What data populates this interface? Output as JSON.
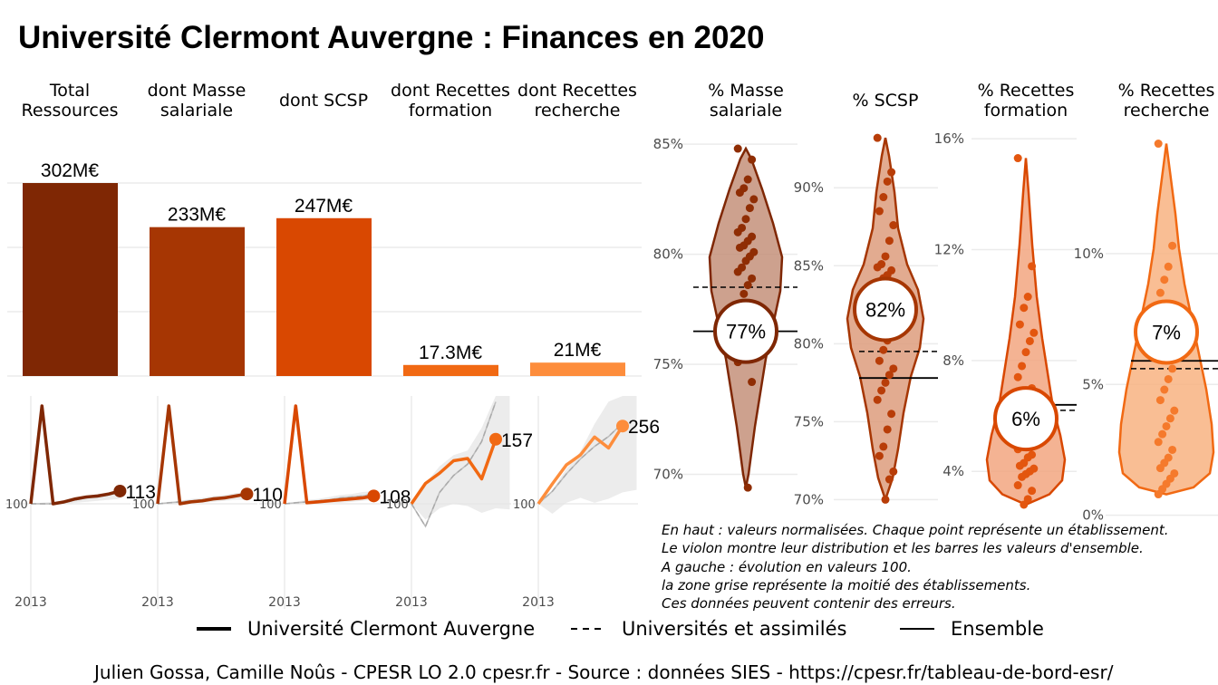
{
  "title": "Université Clermont Auvergne  :  Finances en 2020",
  "chart_data": [
    {
      "type": "bar",
      "categories": [
        "Total\nRessources",
        "dont Masse\nsalariale",
        "dont SCSP",
        "dont Recettes\nformation",
        "dont Recettes\nrecherche"
      ],
      "values": [
        302,
        233,
        247,
        17.3,
        21
      ],
      "value_labels": [
        "302M€",
        "233M€",
        "247M€",
        "17.3M€",
        "21M€"
      ],
      "units": "M€",
      "ylim": [
        0,
        302
      ],
      "colors": [
        "#7f2704",
        "#a63603",
        "#d94801",
        "#f16913",
        "#fd8d3c"
      ],
      "grid": true
    },
    {
      "type": "line",
      "panels": [
        {
          "name": "Total Ressources",
          "end_label": "113",
          "start_label": "100",
          "xlabel": "2013",
          "points": [
            [
              0,
              100
            ],
            [
              1,
              200
            ],
            [
              2,
              100
            ],
            [
              3,
              102
            ],
            [
              4,
              105
            ],
            [
              5,
              107
            ],
            [
              6,
              108
            ],
            [
              7,
              110
            ],
            [
              8,
              113
            ]
          ],
          "dashed": [
            [
              0,
              100
            ],
            [
              1,
              100
            ],
            [
              2,
              100
            ],
            [
              3,
              101
            ],
            [
              4,
              104
            ],
            [
              5,
              106
            ],
            [
              6,
              107
            ],
            [
              7,
              109
            ],
            [
              8,
              112
            ]
          ],
          "band": [
            [
              0,
              100,
              100
            ],
            [
              1,
              99,
              101
            ],
            [
              2,
              99,
              102
            ],
            [
              3,
              100,
              103
            ],
            [
              4,
              101,
              106
            ],
            [
              5,
              102,
              108
            ],
            [
              6,
              103,
              110
            ],
            [
              7,
              104,
              112
            ],
            [
              8,
              105,
              114
            ]
          ]
        },
        {
          "name": "dont Masse salariale",
          "end_label": "110",
          "start_label": "100",
          "xlabel": "2013",
          "points": [
            [
              0,
              100
            ],
            [
              1,
              200
            ],
            [
              2,
              100
            ],
            [
              3,
              102
            ],
            [
              4,
              103
            ],
            [
              5,
              105
            ],
            [
              6,
              106
            ],
            [
              7,
              108
            ],
            [
              8,
              110
            ]
          ],
          "dashed": [
            [
              0,
              100
            ],
            [
              1,
              101
            ],
            [
              2,
              102
            ],
            [
              3,
              103
            ],
            [
              4,
              104
            ],
            [
              5,
              106
            ],
            [
              6,
              107
            ],
            [
              7,
              108
            ],
            [
              8,
              109
            ]
          ],
          "band": [
            [
              0,
              100,
              100
            ],
            [
              1,
              100,
              102
            ],
            [
              2,
              100,
              103
            ],
            [
              3,
              101,
              105
            ],
            [
              4,
              101,
              106
            ],
            [
              5,
              102,
              108
            ],
            [
              6,
              103,
              109
            ],
            [
              7,
              104,
              111
            ],
            [
              8,
              104,
              112
            ]
          ]
        },
        {
          "name": "dont SCSP",
          "end_label": "108",
          "start_label": "100",
          "xlabel": "2013",
          "points": [
            [
              0,
              100
            ],
            [
              1,
              200
            ],
            [
              2,
              101
            ],
            [
              3,
              102
            ],
            [
              4,
              103
            ],
            [
              5,
              104
            ],
            [
              6,
              105
            ],
            [
              7,
              106
            ],
            [
              8,
              108
            ]
          ],
          "dashed": [
            [
              0,
              100
            ],
            [
              1,
              101
            ],
            [
              2,
              102
            ],
            [
              3,
              103
            ],
            [
              4,
              104
            ],
            [
              5,
              106
            ],
            [
              6,
              107
            ],
            [
              7,
              108
            ],
            [
              8,
              110
            ]
          ],
          "band": [
            [
              0,
              100,
              100
            ],
            [
              1,
              100,
              102
            ],
            [
              2,
              100,
              104
            ],
            [
              3,
              100,
              105
            ],
            [
              4,
              101,
              107
            ],
            [
              5,
              101,
              109
            ],
            [
              6,
              102,
              110
            ],
            [
              7,
              103,
              112
            ],
            [
              8,
              104,
              113
            ]
          ]
        },
        {
          "name": "dont Recettes formation",
          "end_label": "157",
          "start_label": "100",
          "xlabel": "2013",
          "points": [
            [
              0,
              100
            ],
            [
              1,
              118
            ],
            [
              2,
              127
            ],
            [
              3,
              138
            ],
            [
              4,
              140
            ],
            [
              5,
              122
            ],
            [
              6,
              157
            ]
          ],
          "dashed": [
            [
              0,
              100
            ],
            [
              1,
              80
            ],
            [
              2,
              110
            ],
            [
              3,
              125
            ],
            [
              4,
              135
            ],
            [
              5,
              155
            ],
            [
              6,
              190
            ]
          ],
          "band": [
            [
              0,
              100,
              100
            ],
            [
              1,
              86,
              118
            ],
            [
              2,
              96,
              133
            ],
            [
              3,
              100,
              143
            ],
            [
              4,
              98,
              147
            ],
            [
              5,
              92,
              167
            ],
            [
              6,
              96,
              198
            ],
            [
              7,
              95,
              203
            ]
          ]
        },
        {
          "name": "dont Recettes recherche",
          "end_label": "256",
          "start_label": "100",
          "xlabel": "2013",
          "points": [
            [
              0,
              100
            ],
            [
              1,
              140
            ],
            [
              2,
              178
            ],
            [
              3,
              198
            ],
            [
              4,
              234
            ],
            [
              5,
              212
            ],
            [
              6,
              256
            ]
          ],
          "dashed": [
            [
              0,
              100
            ],
            [
              1,
              125
            ],
            [
              2,
              160
            ],
            [
              3,
              190
            ],
            [
              4,
              215
            ],
            [
              5,
              235
            ],
            [
              6,
              262
            ]
          ],
          "band": [
            [
              0,
              100,
              100
            ],
            [
              1,
              80,
              128
            ],
            [
              2,
              102,
              170
            ],
            [
              3,
              112,
              205
            ],
            [
              4,
              102,
              260
            ],
            [
              5,
              110,
              305
            ],
            [
              6,
              123,
              360
            ],
            [
              7,
              128,
              420
            ]
          ]
        }
      ]
    },
    {
      "type": "violin",
      "panels": [
        {
          "name": "% Masse\nsalariale",
          "value_label": "77%",
          "value": 76.5,
          "ensemble": 76.5,
          "universites": 78.5,
          "ylim": [
            68.5,
            85.5
          ],
          "ticks": [
            85,
            80,
            75,
            70
          ],
          "tick_labels": [
            "85%",
            "80%",
            "75%",
            "70%"
          ],
          "fill": "#c4917a",
          "stroke": "#7f2704",
          "dot": "#8f2d04",
          "points": [
            84.8,
            84.3,
            83.4,
            83.0,
            82.8,
            82.5,
            82.1,
            81.6,
            81.2,
            81.0,
            80.8,
            80.6,
            80.4,
            80.3,
            80.1,
            79.9,
            79.7,
            79.4,
            79.2,
            78.9,
            78.6,
            78.2,
            77.5,
            77.1,
            76.6,
            76.1,
            75.6,
            75.1,
            74.2,
            69.4
          ]
        },
        {
          "name": "% SCSP",
          "value_label": "82%",
          "value": 82.2,
          "ensemble": 77.8,
          "universites": 79.5,
          "ylim": [
            69.5,
            93.5
          ],
          "ticks": [
            90,
            85,
            80,
            75,
            70
          ],
          "tick_labels": [
            "90%",
            "85%",
            "80%",
            "75%",
            "70%"
          ],
          "fill": "#dd9c7d",
          "stroke": "#a63603",
          "dot": "#b83d08",
          "points": [
            93.2,
            91.0,
            90.4,
            89.4,
            88.5,
            87.6,
            86.6,
            85.6,
            85.1,
            84.9,
            84.7,
            84.4,
            84.2,
            83.7,
            83.1,
            82.7,
            82.3,
            81.7,
            81.2,
            80.8,
            80.2,
            79.6,
            78.9,
            78.4,
            78.0,
            77.5,
            77.0,
            76.4,
            75.5,
            74.5,
            73.4,
            72.8,
            71.8,
            71.3,
            70.0
          ]
        },
        {
          "name": "% Recettes\nformation",
          "value_label": "6%",
          "value": 5.9,
          "ensemble": 6.4,
          "universites": 6.2,
          "ylim": [
            2.7,
            16.2
          ],
          "ticks": [
            16,
            12,
            8,
            4
          ],
          "tick_labels": [
            "16%",
            "12%",
            "8%",
            "4%"
          ],
          "fill": "#f2a680",
          "stroke": "#d94801",
          "dot": "#e3560f",
          "points": [
            15.3,
            11.4,
            10.3,
            9.9,
            9.3,
            9.0,
            8.7,
            8.3,
            7.8,
            7.4,
            7.0,
            6.7,
            6.3,
            6.0,
            5.7,
            5.4,
            5.2,
            5.0,
            4.8,
            4.6,
            4.5,
            4.3,
            4.2,
            4.1,
            4.0,
            3.9,
            3.8,
            3.5,
            3.3,
            3.0,
            2.8
          ]
        },
        {
          "name": "% Recettes\nrecherche",
          "value_label": "7%",
          "value": 7.0,
          "ensemble": 5.9,
          "universites": 5.6,
          "ylim": [
            0.3,
            14.6
          ],
          "ticks": [
            10,
            5,
            0
          ],
          "tick_labels": [
            "10%",
            "5%",
            "0%"
          ],
          "fill": "#f8b381",
          "stroke": "#f16913",
          "dot": "#f57a2c",
          "points": [
            14.2,
            10.3,
            9.5,
            9.0,
            8.5,
            7.8,
            7.4,
            6.9,
            6.5,
            6.1,
            5.6,
            5.2,
            4.8,
            4.4,
            4.0,
            3.7,
            3.4,
            3.1,
            2.8,
            2.5,
            2.2,
            2.0,
            1.8,
            1.6,
            1.4,
            1.2,
            1.0,
            0.8
          ]
        }
      ]
    }
  ],
  "notes": [
    "En haut : valeurs normalisées. Chaque point représente un établissement.",
    "Le violon montre leur distribution et les barres les valeurs d'ensemble.",
    "A gauche : évolution en valeurs 100.",
    "la zone grise représente la moitié des établissements.",
    "Ces données peuvent contenir des erreurs."
  ],
  "legend": {
    "ucl": "Université Clermont Auvergne",
    "univ": "Universités et assimilés",
    "ensemble": "Ensemble"
  },
  "credits": "Julien Gossa, Camille Noûs - CPESR LO 2.0 cpesr.fr - Source : données SIES - https://cpesr.fr/tableau-de-bord-esr/"
}
